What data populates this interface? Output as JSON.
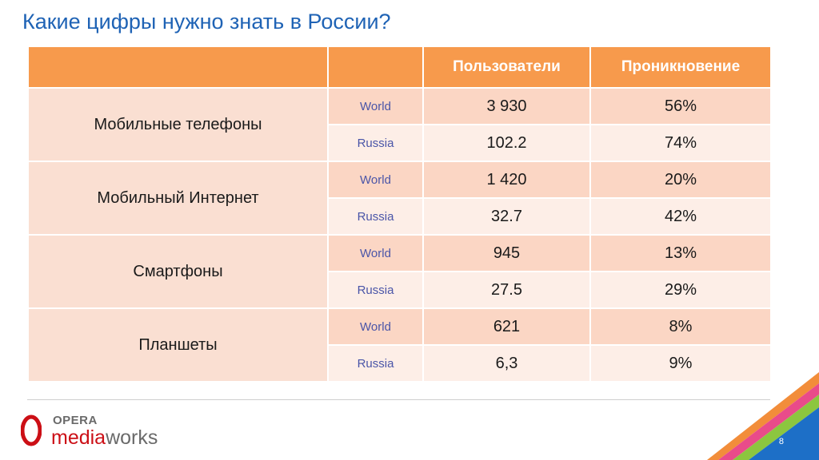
{
  "title": "Какие цифры нужно знать в России?",
  "table": {
    "headers": [
      "",
      "",
      "Пользователи",
      "Проникновение"
    ],
    "groups": [
      {
        "category": "Мобильные телефоны",
        "rows": [
          {
            "region": "World",
            "users": "3 930",
            "penetration": "56%"
          },
          {
            "region": "Russia",
            "users": "102.2",
            "penetration": "74%"
          }
        ]
      },
      {
        "category": "Мобильный Интернет",
        "rows": [
          {
            "region": "World",
            "users": "1 420",
            "penetration": "20%"
          },
          {
            "region": "Russia",
            "users": "32.7",
            "penetration": "42%"
          }
        ]
      },
      {
        "category": "Смартфоны",
        "rows": [
          {
            "region": "World",
            "users": "945",
            "penetration": "13%"
          },
          {
            "region": "Russia",
            "users": "27.5",
            "penetration": "29%"
          }
        ]
      },
      {
        "category": "Планшеты",
        "rows": [
          {
            "region": "World",
            "users": "621",
            "penetration": "8%"
          },
          {
            "region": "Russia",
            "users": "6,3",
            "penetration": "9%"
          }
        ]
      }
    ]
  },
  "logo": {
    "opera": "OPERA",
    "media": "media",
    "works": "works"
  },
  "page_number": "8",
  "colors": {
    "title": "#1f63b5",
    "header": "#f79a4c",
    "category_bg": "#fadfd2",
    "world_bg": "#fbd6c4",
    "russia_bg": "#fdeee7",
    "region_text": "#4a55a8",
    "logo_red": "#cc0f16"
  }
}
